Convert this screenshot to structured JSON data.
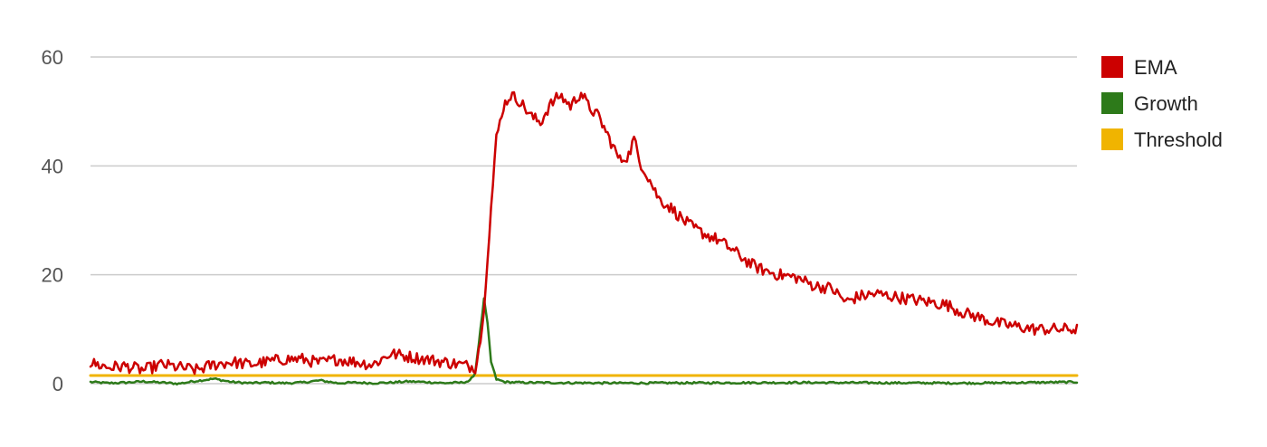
{
  "chart_data": {
    "type": "line",
    "title": "",
    "xlabel": "",
    "ylabel": "",
    "ylim": [
      0,
      60
    ],
    "y_ticks": [
      {
        "value": 0,
        "label": "0"
      },
      {
        "value": 20,
        "label": "20"
      },
      {
        "value": 40,
        "label": "40"
      },
      {
        "value": 60,
        "label": "60"
      }
    ],
    "grid": true,
    "legend_position": "right",
    "x_count": 560,
    "series": [
      {
        "name": "EMA",
        "color": "#cc0000",
        "keyframes": [
          [
            0,
            3.8
          ],
          [
            10,
            3.0
          ],
          [
            20,
            3.2
          ],
          [
            30,
            2.5
          ],
          [
            40,
            3.5
          ],
          [
            50,
            3.0
          ],
          [
            60,
            2.5
          ],
          [
            70,
            3.5
          ],
          [
            80,
            4.0
          ],
          [
            90,
            3.5
          ],
          [
            100,
            4.0
          ],
          [
            110,
            4.5
          ],
          [
            120,
            4.5
          ],
          [
            130,
            3.8
          ],
          [
            140,
            4.5
          ],
          [
            150,
            4.0
          ],
          [
            160,
            3.5
          ],
          [
            170,
            5.5
          ],
          [
            180,
            5.0
          ],
          [
            190,
            4.5
          ],
          [
            200,
            4.0
          ],
          [
            210,
            3.5
          ],
          [
            218,
            3.0
          ],
          [
            222,
            10.0
          ],
          [
            226,
            28.0
          ],
          [
            230,
            45.0
          ],
          [
            234,
            51.0
          ],
          [
            238,
            53.0
          ],
          [
            243,
            52.0
          ],
          [
            250,
            49.0
          ],
          [
            255,
            48.0
          ],
          [
            260,
            51.0
          ],
          [
            266,
            53.0
          ],
          [
            272,
            51.0
          ],
          [
            278,
            53.5
          ],
          [
            282,
            51.0
          ],
          [
            288,
            49.0
          ],
          [
            294,
            45.0
          ],
          [
            300,
            41.0
          ],
          [
            305,
            42.0
          ],
          [
            308,
            45.0
          ],
          [
            311,
            41.0
          ],
          [
            316,
            38.0
          ],
          [
            322,
            34.0
          ],
          [
            330,
            32.0
          ],
          [
            336,
            30.0
          ],
          [
            342,
            28.5
          ],
          [
            348,
            27.5
          ],
          [
            355,
            26.5
          ],
          [
            362,
            25.0
          ],
          [
            368,
            23.5
          ],
          [
            374,
            22.0
          ],
          [
            380,
            21.0
          ],
          [
            390,
            20.0
          ],
          [
            400,
            19.5
          ],
          [
            410,
            18.0
          ],
          [
            420,
            17.5
          ],
          [
            428,
            15.0
          ],
          [
            435,
            16.0
          ],
          [
            445,
            16.5
          ],
          [
            455,
            16.0
          ],
          [
            465,
            15.5
          ],
          [
            475,
            15.0
          ],
          [
            485,
            14.5
          ],
          [
            495,
            13.0
          ],
          [
            505,
            12.0
          ],
          [
            515,
            11.0
          ],
          [
            525,
            10.5
          ],
          [
            535,
            10.0
          ],
          [
            545,
            10.0
          ],
          [
            559,
            10.0
          ]
        ]
      },
      {
        "name": "Growth",
        "color": "#2d7a1a",
        "keyframes": [
          [
            0,
            0.3
          ],
          [
            10,
            0.1
          ],
          [
            20,
            0.2
          ],
          [
            30,
            0.4
          ],
          [
            40,
            0.2
          ],
          [
            50,
            0.0
          ],
          [
            60,
            0.5
          ],
          [
            70,
            0.9
          ],
          [
            80,
            0.3
          ],
          [
            90,
            0.1
          ],
          [
            100,
            0.2
          ],
          [
            110,
            0.1
          ],
          [
            120,
            0.2
          ],
          [
            130,
            0.6
          ],
          [
            140,
            0.1
          ],
          [
            150,
            0.2
          ],
          [
            160,
            0.1
          ],
          [
            170,
            0.2
          ],
          [
            180,
            0.4
          ],
          [
            190,
            0.3
          ],
          [
            200,
            0.1
          ],
          [
            210,
            0.2
          ],
          [
            215,
            0.5
          ],
          [
            218,
            2.0
          ],
          [
            221,
            10.0
          ],
          [
            223,
            15.5
          ],
          [
            225,
            11.0
          ],
          [
            227,
            4.0
          ],
          [
            230,
            0.8
          ],
          [
            235,
            0.3
          ],
          [
            245,
            0.2
          ],
          [
            300,
            0.1
          ],
          [
            400,
            0.2
          ],
          [
            500,
            0.1
          ],
          [
            559,
            0.3
          ]
        ]
      },
      {
        "name": "Threshold",
        "color": "#f0b400",
        "keyframes": [
          [
            0,
            1.5
          ],
          [
            559,
            1.5
          ]
        ]
      }
    ]
  }
}
